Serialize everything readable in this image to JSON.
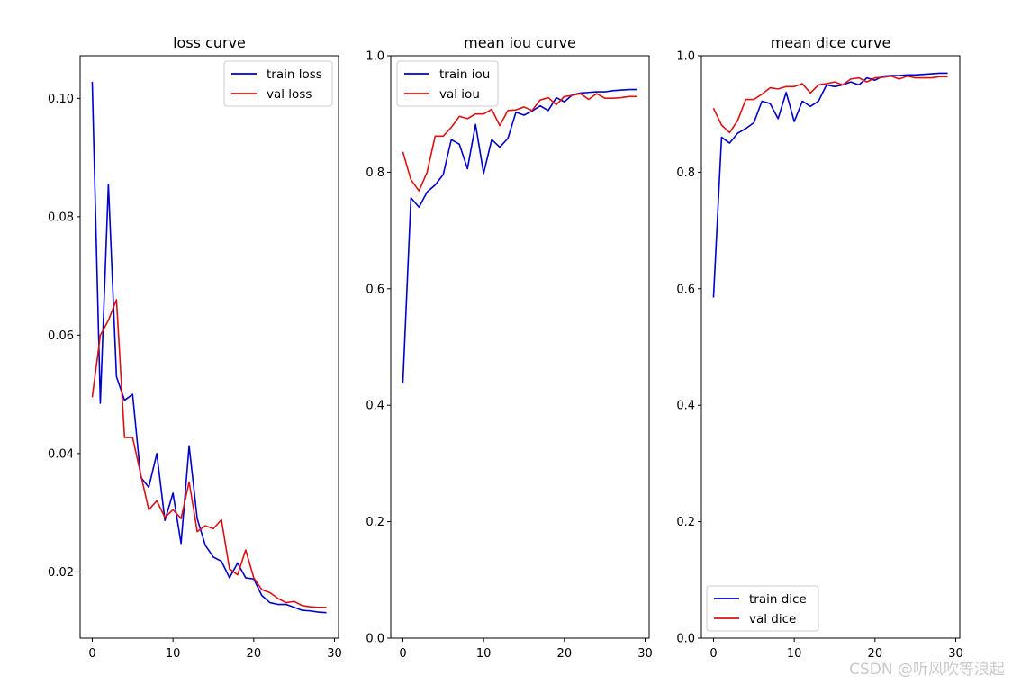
{
  "chart_data": [
    {
      "type": "line",
      "title": "loss curve",
      "xlabel": "",
      "ylabel": "",
      "xlim": [
        -1.5,
        30.5
      ],
      "ylim": [
        0.0088,
        0.1072
      ],
      "xticks": [
        0,
        10,
        20,
        30
      ],
      "yticks": [
        0.02,
        0.04,
        0.06,
        0.08,
        0.1
      ],
      "xtick_labels": [
        "0",
        "10",
        "20",
        "30"
      ],
      "ytick_labels": [
        "0.02",
        "0.04",
        "0.06",
        "0.08",
        "0.10"
      ],
      "legend_position": "top-right",
      "x": [
        0,
        1,
        2,
        3,
        4,
        5,
        6,
        7,
        8,
        9,
        10,
        11,
        12,
        13,
        14,
        15,
        16,
        17,
        18,
        19,
        20,
        21,
        22,
        23,
        24,
        25,
        26,
        27,
        28,
        29
      ],
      "series": [
        {
          "name": "train loss",
          "color": "#0000cc",
          "values": [
            0.1028,
            0.0485,
            0.0855,
            0.053,
            0.049,
            0.05,
            0.036,
            0.0343,
            0.04,
            0.0287,
            0.0333,
            0.0248,
            0.0413,
            0.029,
            0.0245,
            0.0225,
            0.0218,
            0.019,
            0.0215,
            0.019,
            0.0188,
            0.016,
            0.0148,
            0.0145,
            0.0145,
            0.014,
            0.0135,
            0.0134,
            0.0132,
            0.0131
          ]
        },
        {
          "name": "val loss",
          "color": "#dd1111",
          "values": [
            0.0495,
            0.06,
            0.0625,
            0.066,
            0.0427,
            0.0427,
            0.0365,
            0.0305,
            0.032,
            0.0292,
            0.0305,
            0.029,
            0.0352,
            0.0268,
            0.0278,
            0.0273,
            0.0288,
            0.0205,
            0.0195,
            0.0237,
            0.019,
            0.017,
            0.0165,
            0.0155,
            0.0148,
            0.015,
            0.0143,
            0.0141,
            0.014,
            0.014
          ]
        }
      ]
    },
    {
      "type": "line",
      "title": "mean iou curve",
      "xlabel": "",
      "ylabel": "",
      "xlim": [
        -1.5,
        30.5
      ],
      "ylim": [
        0.0,
        1.0
      ],
      "xticks": [
        0,
        10,
        20,
        30
      ],
      "yticks": [
        0.0,
        0.2,
        0.4,
        0.6,
        0.8,
        1.0
      ],
      "xtick_labels": [
        "0",
        "10",
        "20",
        "30"
      ],
      "ytick_labels": [
        "0.0",
        "0.2",
        "0.4",
        "0.6",
        "0.8",
        "1.0"
      ],
      "legend_position": "top-left",
      "x": [
        0,
        1,
        2,
        3,
        4,
        5,
        6,
        7,
        8,
        9,
        10,
        11,
        12,
        13,
        14,
        15,
        16,
        17,
        18,
        19,
        20,
        21,
        22,
        23,
        24,
        25,
        26,
        27,
        28,
        29
      ],
      "series": [
        {
          "name": "train iou",
          "color": "#0000cc",
          "values": [
            0.438,
            0.756,
            0.74,
            0.766,
            0.778,
            0.796,
            0.856,
            0.848,
            0.806,
            0.882,
            0.798,
            0.856,
            0.843,
            0.858,
            0.903,
            0.898,
            0.905,
            0.914,
            0.906,
            0.928,
            0.921,
            0.933,
            0.936,
            0.937,
            0.938,
            0.938,
            0.94,
            0.941,
            0.942,
            0.942
          ]
        },
        {
          "name": "val iou",
          "color": "#dd1111",
          "values": [
            0.835,
            0.787,
            0.768,
            0.8,
            0.862,
            0.862,
            0.877,
            0.896,
            0.892,
            0.9,
            0.9,
            0.908,
            0.88,
            0.906,
            0.907,
            0.912,
            0.906,
            0.924,
            0.928,
            0.916,
            0.93,
            0.932,
            0.935,
            0.925,
            0.935,
            0.927,
            0.927,
            0.928,
            0.93,
            0.93
          ]
        }
      ]
    },
    {
      "type": "line",
      "title": "mean dice curve",
      "xlabel": "",
      "ylabel": "",
      "xlim": [
        -1.5,
        30.5
      ],
      "ylim": [
        0.0,
        1.0
      ],
      "xticks": [
        0,
        10,
        20,
        30
      ],
      "yticks": [
        0.0,
        0.2,
        0.4,
        0.6,
        0.8,
        1.0
      ],
      "xtick_labels": [
        "0",
        "10",
        "20",
        "30"
      ],
      "ytick_labels": [
        "0.0",
        "0.2",
        "0.4",
        "0.6",
        "0.8",
        "1.0"
      ],
      "legend_position": "bottom-left",
      "x": [
        0,
        1,
        2,
        3,
        4,
        5,
        6,
        7,
        8,
        9,
        10,
        11,
        12,
        13,
        14,
        15,
        16,
        17,
        18,
        19,
        20,
        21,
        22,
        23,
        24,
        25,
        26,
        27,
        28,
        29
      ],
      "series": [
        {
          "name": "train dice",
          "color": "#0000cc",
          "values": [
            0.585,
            0.86,
            0.85,
            0.867,
            0.875,
            0.885,
            0.922,
            0.918,
            0.892,
            0.937,
            0.887,
            0.922,
            0.913,
            0.922,
            0.95,
            0.947,
            0.95,
            0.955,
            0.95,
            0.962,
            0.958,
            0.965,
            0.966,
            0.966,
            0.967,
            0.967,
            0.968,
            0.969,
            0.97,
            0.97
          ]
        },
        {
          "name": "val dice",
          "color": "#dd1111",
          "values": [
            0.91,
            0.881,
            0.868,
            0.889,
            0.925,
            0.925,
            0.934,
            0.945,
            0.943,
            0.947,
            0.947,
            0.952,
            0.936,
            0.95,
            0.952,
            0.955,
            0.95,
            0.96,
            0.962,
            0.955,
            0.962,
            0.963,
            0.965,
            0.96,
            0.965,
            0.962,
            0.962,
            0.962,
            0.964,
            0.964
          ]
        }
      ]
    }
  ],
  "watermark": "CSDN @听风吹等浪起"
}
